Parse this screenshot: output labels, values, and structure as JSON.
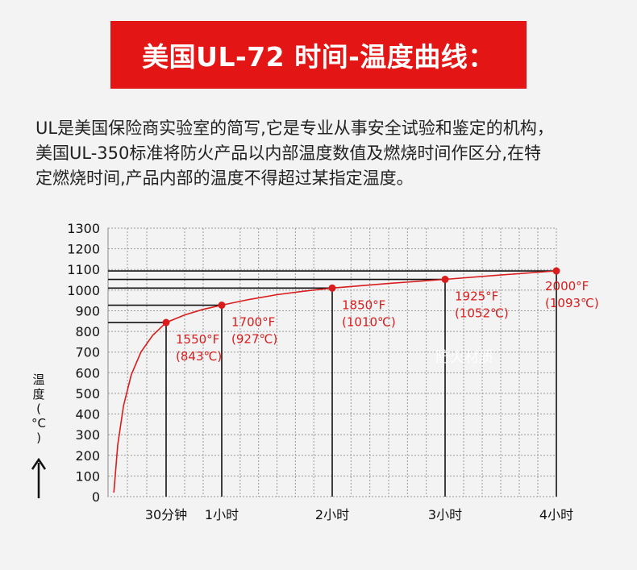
{
  "header": {
    "title": "美国UL-72 时间-温度曲线："
  },
  "intro": {
    "lines": [
      "UL是美国保险商实验室的简写,它是专业从事安全试验和鉴定的机构，",
      "美国UL-350标准将防火产品以内部温度数值及燃烧时间作区分,在特",
      "定燃烧时间,产品内部的温度不得超过某指定温度。"
    ]
  },
  "watermark": "防火材质",
  "colors": {
    "banner": "#e31515",
    "curve": "#d91c1c",
    "point": "#d91c1c",
    "guide": "#111111",
    "grid": "#999999"
  },
  "chart_data": {
    "type": "line",
    "ylabel_chars": [
      "温",
      "度",
      "(",
      "°C",
      ")"
    ],
    "ylim": [
      0,
      1300
    ],
    "yticks": [
      0,
      100,
      200,
      300,
      400,
      500,
      600,
      700,
      800,
      900,
      1000,
      1100,
      1200,
      1300
    ],
    "xlim_minutes": [
      0,
      240
    ],
    "xticks": [
      {
        "minutes": 30,
        "label": "30分钟"
      },
      {
        "minutes": 60,
        "label": "1小时"
      },
      {
        "minutes": 120,
        "label": "2小时"
      },
      {
        "minutes": 180,
        "label": "3小时"
      },
      {
        "minutes": 240,
        "label": "4小时"
      }
    ],
    "grid": true,
    "points": [
      {
        "minutes": 30,
        "celsius": 843,
        "label_f": "1550°F",
        "label_c": "(843℃)"
      },
      {
        "minutes": 60,
        "celsius": 927,
        "label_f": "1700°F",
        "label_c": "(927℃)"
      },
      {
        "minutes": 120,
        "celsius": 1010,
        "label_f": "1850°F",
        "label_c": "(1010℃)"
      },
      {
        "minutes": 180,
        "celsius": 1052,
        "label_f": "1925°F",
        "label_c": "(1052℃)"
      },
      {
        "minutes": 240,
        "celsius": 1093,
        "label_f": "2000°F",
        "label_c": "(1093℃)"
      }
    ],
    "curve": [
      [
        3,
        20
      ],
      [
        5,
        250
      ],
      [
        8,
        440
      ],
      [
        12,
        590
      ],
      [
        17,
        700
      ],
      [
        23,
        780
      ],
      [
        30,
        843
      ],
      [
        40,
        880
      ],
      [
        50,
        907
      ],
      [
        60,
        927
      ],
      [
        75,
        955
      ],
      [
        90,
        978
      ],
      [
        105,
        995
      ],
      [
        120,
        1010
      ],
      [
        150,
        1032
      ],
      [
        180,
        1052
      ],
      [
        210,
        1073
      ],
      [
        240,
        1093
      ]
    ]
  }
}
